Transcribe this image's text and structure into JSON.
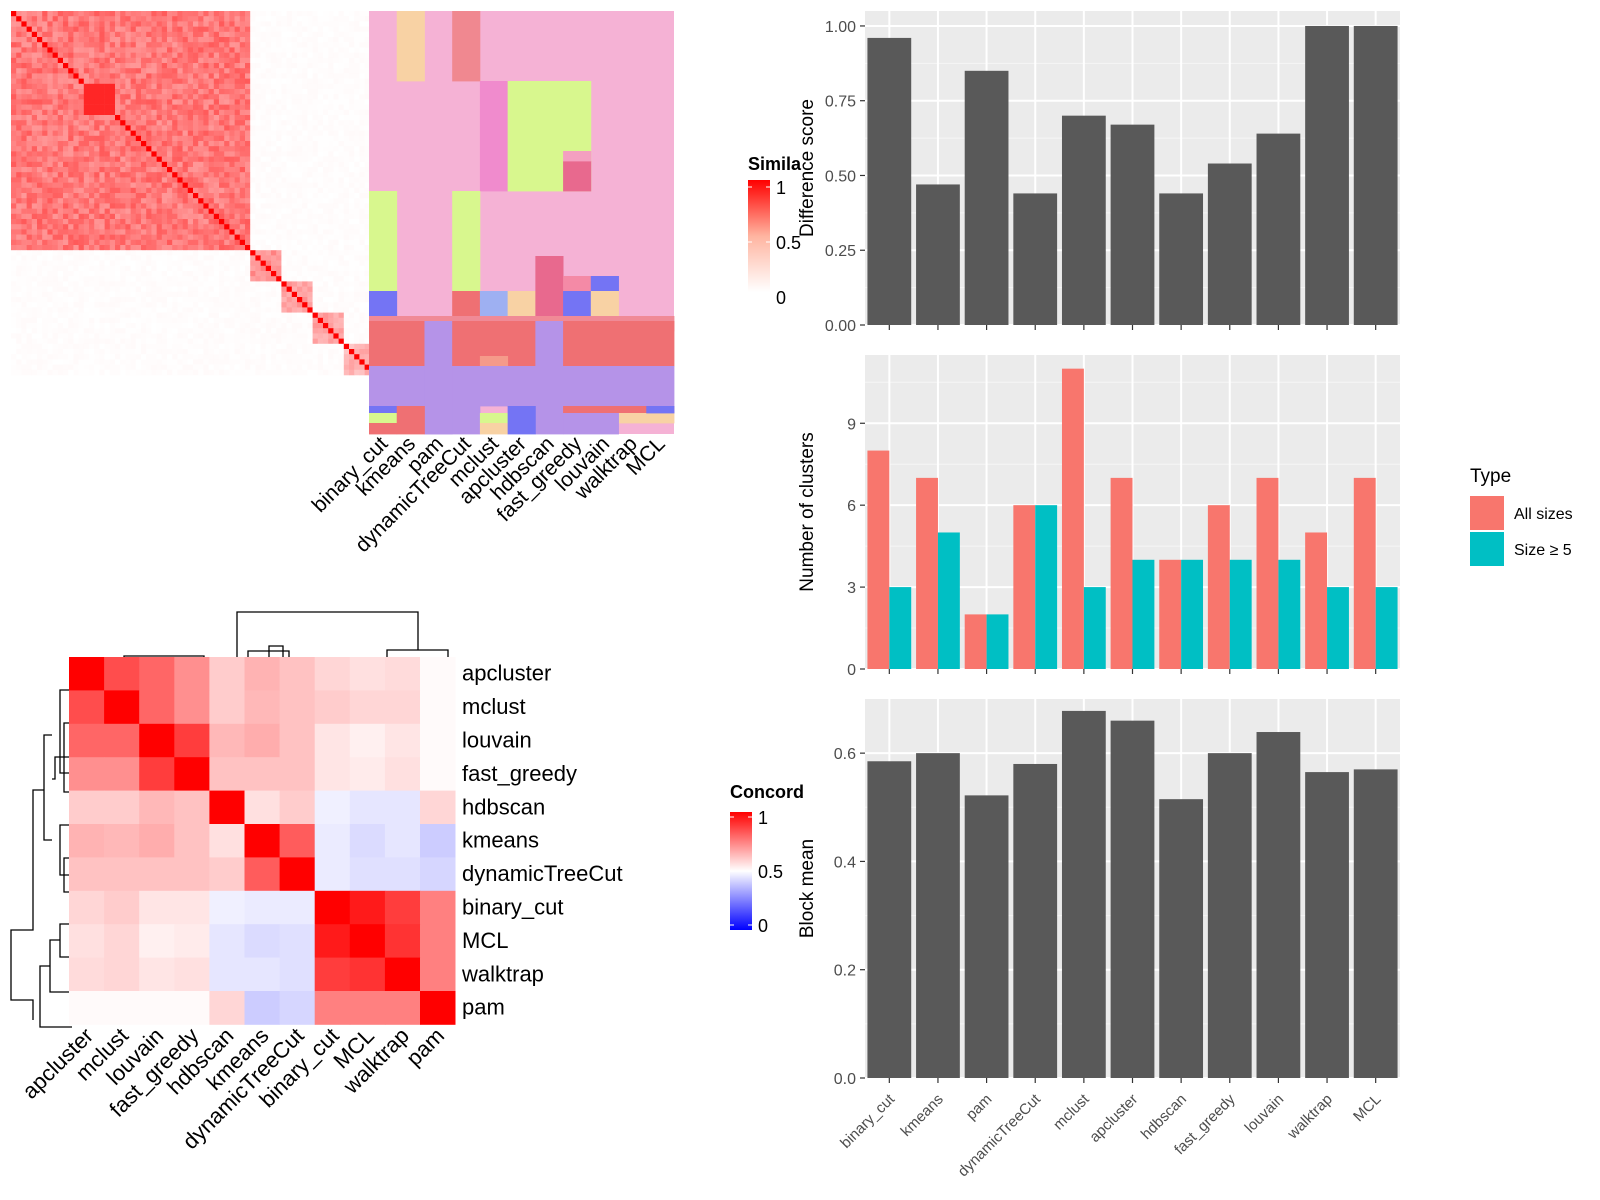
{
  "chart_data": [
    {
      "type": "heatmap",
      "panel": "similarity heatmap with cluster labels",
      "legend_title": "Simila",
      "legend_ticks": [
        "1",
        "0.5",
        "0"
      ],
      "column_labels": [
        "binary_cut",
        "kmeans",
        "pam",
        "dynamicTreeCut",
        "mclust",
        "apcluster",
        "hdbscan",
        "fast_greedy",
        "louvain",
        "walktrap",
        "MCL"
      ]
    },
    {
      "type": "heatmap",
      "panel": "concordance heatmap",
      "legend_title": "Concord",
      "legend_ticks": [
        "1",
        "0.5",
        "0"
      ],
      "row_labels": [
        "apcluster",
        "mclust",
        "louvain",
        "fast_greedy",
        "hdbscan",
        "kmeans",
        "dynamicTreeCut",
        "binary_cut",
        "MCL",
        "walktrap",
        "pam"
      ],
      "column_labels": [
        "apcluster",
        "mclust",
        "louvain",
        "fast_greedy",
        "hdbscan",
        "kmeans",
        "dynamicTreeCut",
        "binary_cut",
        "MCL",
        "walktrap",
        "pam"
      ],
      "values": [
        [
          1.0,
          0.85,
          0.8,
          0.72,
          0.6,
          0.65,
          0.62,
          0.58,
          0.56,
          0.57,
          0.51
        ],
        [
          0.85,
          1.0,
          0.8,
          0.72,
          0.6,
          0.64,
          0.62,
          0.6,
          0.58,
          0.58,
          0.51
        ],
        [
          0.8,
          0.8,
          1.0,
          0.88,
          0.64,
          0.66,
          0.62,
          0.55,
          0.53,
          0.55,
          0.51
        ],
        [
          0.72,
          0.72,
          0.88,
          1.0,
          0.62,
          0.62,
          0.62,
          0.55,
          0.54,
          0.56,
          0.51
        ],
        [
          0.6,
          0.6,
          0.64,
          0.62,
          1.0,
          0.56,
          0.6,
          0.47,
          0.45,
          0.45,
          0.58
        ],
        [
          0.65,
          0.64,
          0.66,
          0.62,
          0.56,
          1.0,
          0.82,
          0.46,
          0.43,
          0.45,
          0.4
        ],
        [
          0.62,
          0.62,
          0.62,
          0.62,
          0.6,
          0.82,
          1.0,
          0.46,
          0.44,
          0.44,
          0.42
        ],
        [
          0.58,
          0.6,
          0.55,
          0.55,
          0.47,
          0.46,
          0.46,
          1.0,
          0.95,
          0.88,
          0.75
        ],
        [
          0.56,
          0.58,
          0.53,
          0.54,
          0.45,
          0.43,
          0.44,
          0.95,
          1.0,
          0.9,
          0.75
        ],
        [
          0.57,
          0.58,
          0.55,
          0.56,
          0.45,
          0.45,
          0.44,
          0.88,
          0.9,
          1.0,
          0.75
        ],
        [
          0.51,
          0.51,
          0.51,
          0.51,
          0.58,
          0.4,
          0.42,
          0.75,
          0.75,
          0.75,
          1.0
        ]
      ]
    },
    {
      "type": "bar",
      "categories": [
        "binary_cut",
        "kmeans",
        "pam",
        "dynamicTreeCut",
        "mclust",
        "apcluster",
        "hdbscan",
        "fast_greedy",
        "louvain",
        "walktrap",
        "MCL"
      ],
      "values": [
        0.96,
        0.47,
        0.85,
        0.44,
        0.7,
        0.67,
        0.44,
        0.54,
        0.64,
        1.0,
        1.0
      ],
      "ylabel": "Difference score",
      "ylim": [
        0,
        1.05
      ],
      "yticks": [
        "0.00",
        "0.25",
        "0.50",
        "0.75",
        "1.00"
      ],
      "color": "#595959"
    },
    {
      "type": "bar",
      "categories": [
        "binary_cut",
        "kmeans",
        "pam",
        "dynamicTreeCut",
        "mclust",
        "apcluster",
        "hdbscan",
        "fast_greedy",
        "louvain",
        "walktrap",
        "MCL"
      ],
      "series": [
        {
          "name": "All sizes",
          "values": [
            8,
            7,
            2,
            6,
            11,
            7,
            4,
            6,
            7,
            5,
            7
          ],
          "color": "#F8766D"
        },
        {
          "name": "Size ≥ 5",
          "values": [
            3,
            5,
            2,
            6,
            3,
            4,
            4,
            4,
            4,
            3,
            3
          ],
          "color": "#00BFC4"
        }
      ],
      "ylabel": "Number of clusters",
      "ylim": [
        0,
        11.5
      ],
      "yticks": [
        "0",
        "3",
        "6",
        "9"
      ],
      "legend_title": "Type"
    },
    {
      "type": "bar",
      "categories": [
        "binary_cut",
        "kmeans",
        "pam",
        "dynamicTreeCut",
        "mclust",
        "apcluster",
        "hdbscan",
        "fast_greedy",
        "louvain",
        "walktrap",
        "MCL"
      ],
      "values": [
        0.585,
        0.6,
        0.522,
        0.58,
        0.678,
        0.66,
        0.515,
        0.6,
        0.639,
        0.565,
        0.57
      ],
      "ylabel": "Block mean",
      "ylim": [
        0,
        0.7
      ],
      "yticks": [
        "0.0",
        "0.2",
        "0.4",
        "0.6"
      ],
      "color": "#595959"
    }
  ]
}
